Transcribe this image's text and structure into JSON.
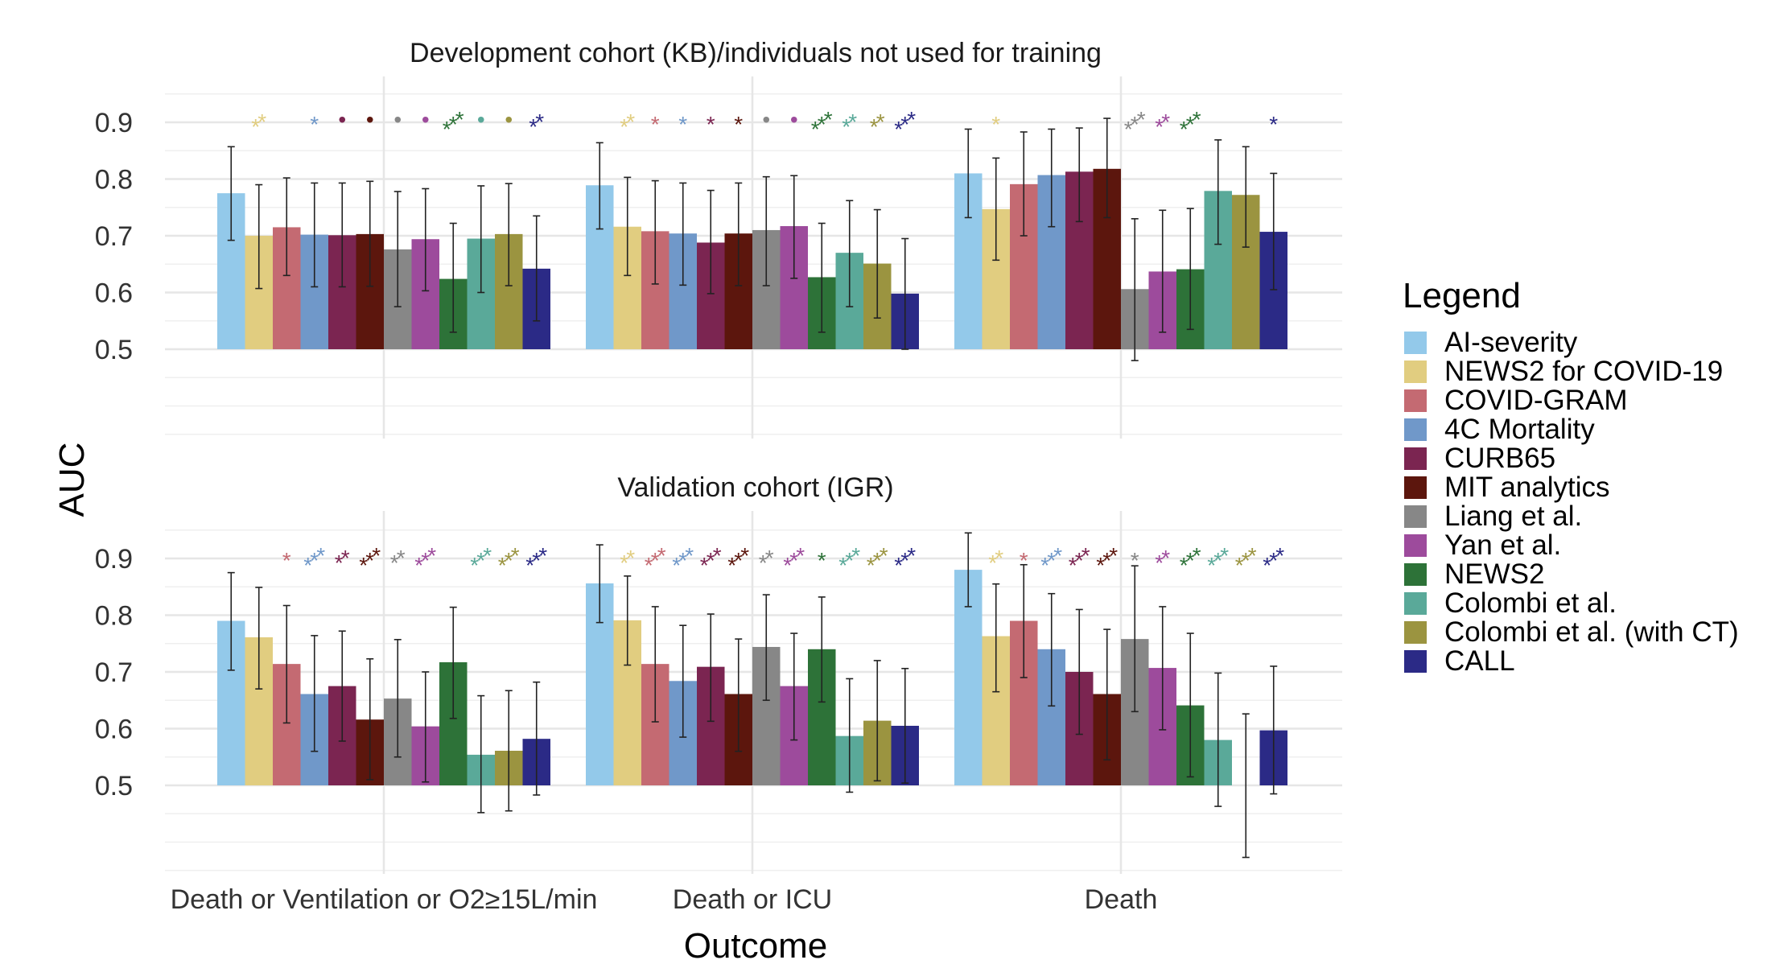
{
  "chart_data": {
    "type": "bar",
    "xlabel": "Outcome",
    "ylabel": "AUC",
    "yticks": [
      "0.5",
      "0.6",
      "0.7",
      "0.8",
      "0.9"
    ],
    "ylim": [
      0.4,
      0.95
    ],
    "grid": true,
    "legend": {
      "title": "Legend",
      "placement": "right"
    },
    "categories": [
      "Death or Ventilation or O2≥15L/min",
      "Death or ICU",
      "Death"
    ],
    "series": [
      {
        "name": "AI-severity",
        "color": "#93c9ea"
      },
      {
        "name": "NEWS2 for COVID-19",
        "color": "#e1cd80"
      },
      {
        "name": "COVID-GRAM",
        "color": "#c46a72"
      },
      {
        "name": "4C Mortality",
        "color": "#7098c9"
      },
      {
        "name": "CURB65",
        "color": "#7b2551"
      },
      {
        "name": "MIT analytics",
        "color": "#5c160d"
      },
      {
        "name": "Liang et al.",
        "color": "#878787"
      },
      {
        "name": "Yan et al.",
        "color": "#9d4b9c"
      },
      {
        "name": "NEWS2",
        "color": "#2d7238"
      },
      {
        "name": "Colombi et al.",
        "color": "#5aa999"
      },
      {
        "name": "Colombi et al. (with CT)",
        "color": "#9b9440"
      },
      {
        "name": "CALL",
        "color": "#2b2a86"
      }
    ],
    "panels": [
      {
        "title": "Development cohort (KB)/individuals not used for training",
        "groups": [
          {
            "auc": [
              0.775,
              0.7,
              0.715,
              0.702,
              0.701,
              0.703,
              0.676,
              0.694,
              0.624,
              0.695,
              0.703,
              0.642
            ],
            "lower": [
              0.692,
              0.607,
              0.63,
              0.61,
              0.61,
              0.611,
              0.575,
              0.603,
              0.53,
              0.6,
              0.612,
              0.55
            ],
            "upper": [
              0.857,
              0.79,
              0.802,
              0.793,
              0.793,
              0.796,
              0.778,
              0.783,
              0.722,
              0.788,
              0.792,
              0.735
            ],
            "marks": [
              "",
              "**",
              "",
              "*",
              "•",
              "•",
              "•",
              "•",
              "***",
              "•",
              "•",
              "**"
            ]
          },
          {
            "auc": [
              0.789,
              0.716,
              0.708,
              0.704,
              0.688,
              0.704,
              0.71,
              0.717,
              0.627,
              0.67,
              0.651,
              0.598
            ],
            "lower": [
              0.712,
              0.63,
              0.615,
              0.613,
              0.598,
              0.612,
              0.612,
              0.625,
              0.53,
              0.575,
              0.555,
              0.5
            ],
            "upper": [
              0.864,
              0.803,
              0.797,
              0.793,
              0.78,
              0.793,
              0.804,
              0.806,
              0.722,
              0.762,
              0.746,
              0.695
            ],
            "marks": [
              "",
              "**",
              "*",
              "*",
              "*",
              "*",
              "•",
              "•",
              "***",
              "**",
              "**",
              "***"
            ]
          },
          {
            "auc": [
              0.81,
              0.747,
              0.791,
              0.807,
              0.813,
              0.818,
              0.606,
              0.637,
              0.641,
              0.779,
              0.772,
              0.707
            ],
            "lower": [
              0.732,
              0.657,
              0.7,
              0.716,
              0.725,
              0.732,
              0.48,
              0.53,
              0.535,
              0.685,
              0.68,
              0.605
            ],
            "upper": [
              0.888,
              0.837,
              0.883,
              0.888,
              0.89,
              0.907,
              0.73,
              0.745,
              0.748,
              0.869,
              0.857,
              0.81
            ],
            "marks": [
              "",
              "*",
              "",
              "",
              "",
              "",
              "***",
              "**",
              "***",
              "",
              "",
              "*"
            ]
          }
        ]
      },
      {
        "title": "Validation cohort (IGR)",
        "groups": [
          {
            "auc": [
              0.79,
              0.761,
              0.714,
              0.661,
              0.675,
              0.616,
              0.653,
              0.604,
              0.717,
              0.554,
              0.561,
              0.582
            ],
            "lower": [
              0.703,
              0.67,
              0.61,
              0.56,
              0.578,
              0.51,
              0.55,
              0.506,
              0.618,
              0.452,
              0.455,
              0.483
            ],
            "upper": [
              0.875,
              0.849,
              0.817,
              0.764,
              0.772,
              0.723,
              0.757,
              0.7,
              0.814,
              0.658,
              0.667,
              0.682
            ],
            "marks": [
              "",
              "",
              "*",
              "***",
              "**",
              "***",
              "**",
              "***",
              "",
              "***",
              "***",
              "***"
            ]
          },
          {
            "auc": [
              0.856,
              0.791,
              0.714,
              0.684,
              0.709,
              0.661,
              0.744,
              0.675,
              0.74,
              0.587,
              0.614,
              0.605
            ],
            "lower": [
              0.787,
              0.712,
              0.612,
              0.585,
              0.613,
              0.56,
              0.65,
              0.58,
              0.647,
              0.488,
              0.508,
              0.504
            ],
            "upper": [
              0.924,
              0.869,
              0.815,
              0.782,
              0.802,
              0.758,
              0.836,
              0.768,
              0.832,
              0.688,
              0.72,
              0.706
            ],
            "marks": [
              "",
              "**",
              "***",
              "***",
              "***",
              "***",
              "**",
              "***",
              "*",
              "***",
              "***",
              "***"
            ]
          },
          {
            "auc": [
              0.88,
              0.763,
              0.79,
              0.74,
              0.7,
              0.661,
              0.758,
              0.707,
              0.641,
              0.58,
              0.5,
              0.597
            ],
            "lower": [
              0.815,
              0.665,
              0.69,
              0.64,
              0.59,
              0.545,
              0.63,
              0.598,
              0.515,
              0.463,
              0.373,
              0.485
            ],
            "upper": [
              0.945,
              0.855,
              0.889,
              0.838,
              0.81,
              0.775,
              0.887,
              0.815,
              0.768,
              0.698,
              0.626,
              0.71
            ],
            "marks": [
              "",
              "**",
              "*",
              "***",
              "***",
              "***",
              "*",
              "**",
              "***",
              "***",
              "***",
              "***"
            ]
          }
        ]
      }
    ]
  }
}
